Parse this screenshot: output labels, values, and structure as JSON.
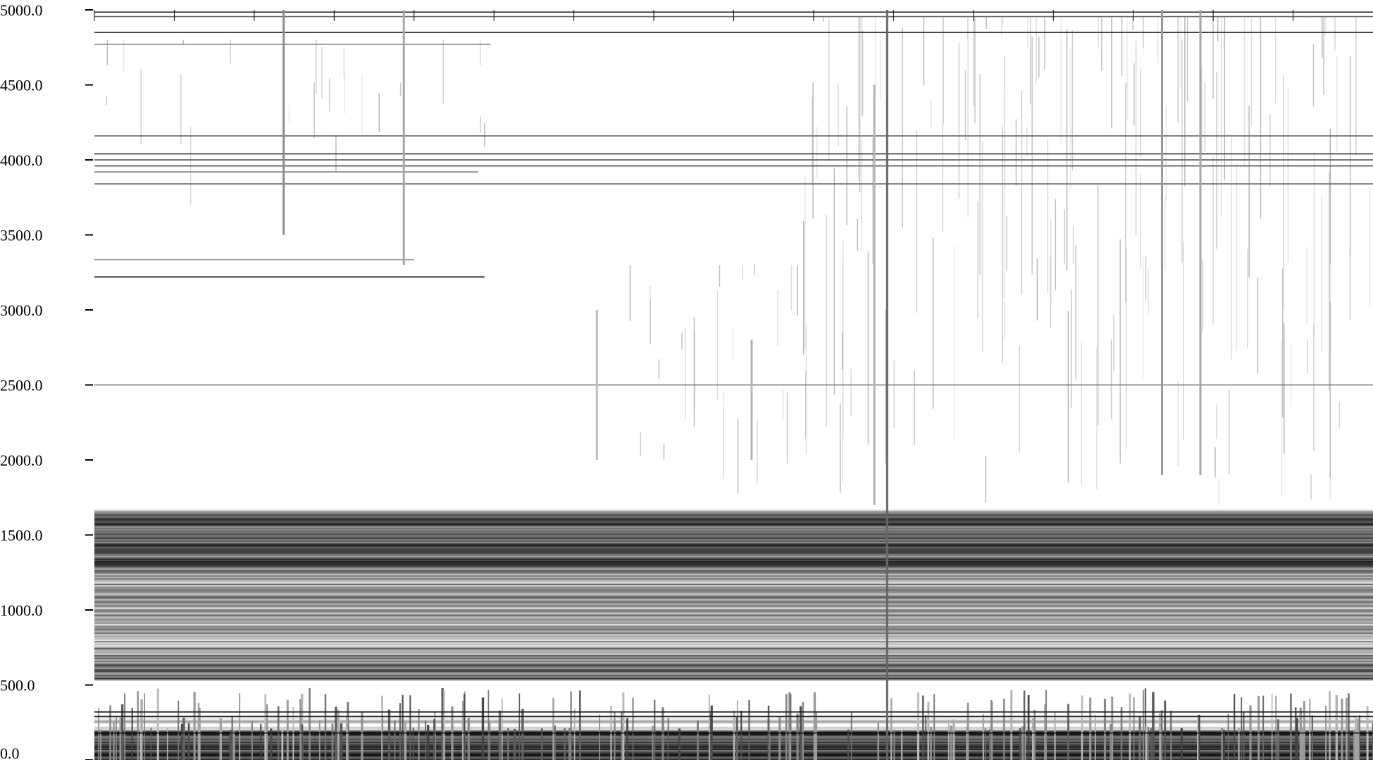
{
  "chart_data": {
    "type": "heatmap",
    "title": "",
    "xlabel": "",
    "ylabel": "",
    "ylim": [
      0,
      5000
    ],
    "y_ticks": [
      "0.0",
      "500.0",
      "1000.0",
      "1500.0",
      "2000.0",
      "2500.0",
      "3000.0",
      "3500.0",
      "4000.0",
      "4500.0",
      "5000.0"
    ],
    "y_tick_values": [
      0,
      500,
      1000,
      1500,
      2000,
      2500,
      3000,
      3500,
      4000,
      4500,
      5000
    ],
    "x_tick_count": 16,
    "x_tick_labels": [],
    "colormap": [
      "#ffffff",
      "#000000"
    ],
    "bands": [
      {
        "y0": 0,
        "y1": 200,
        "intensity": 0.72
      },
      {
        "y0": 200,
        "y1": 330,
        "intensity": 0.12
      },
      {
        "y0": 530,
        "y1": 700,
        "intensity": 0.52
      },
      {
        "y0": 700,
        "y1": 1250,
        "intensity": 0.38
      },
      {
        "y0": 1250,
        "y1": 1650,
        "intensity": 0.66
      },
      {
        "y0": 1650,
        "y1": 1680,
        "intensity": 0.22
      }
    ],
    "horizontal_lines": [
      {
        "y": 4985,
        "x0": 0.0,
        "x1": 1.0,
        "intensity": 0.8
      },
      {
        "y": 4955,
        "x0": 0.0,
        "x1": 1.0,
        "intensity": 0.6
      },
      {
        "y": 4850,
        "x0": 0.0,
        "x1": 1.0,
        "intensity": 0.9
      },
      {
        "y": 4770,
        "x0": 0.0,
        "x1": 0.31,
        "intensity": 0.5
      },
      {
        "y": 4160,
        "x0": 0.0,
        "x1": 1.0,
        "intensity": 0.6
      },
      {
        "y": 4040,
        "x0": 0.0,
        "x1": 1.0,
        "intensity": 0.8
      },
      {
        "y": 4000,
        "x0": 0.0,
        "x1": 1.0,
        "intensity": 0.7
      },
      {
        "y": 3960,
        "x0": 0.0,
        "x1": 1.0,
        "intensity": 0.7
      },
      {
        "y": 3920,
        "x0": 0.0,
        "x1": 0.3,
        "intensity": 0.5
      },
      {
        "y": 3840,
        "x0": 0.0,
        "x1": 1.0,
        "intensity": 0.6
      },
      {
        "y": 3335,
        "x0": 0.0,
        "x1": 0.25,
        "intensity": 0.4
      },
      {
        "y": 3220,
        "x0": 0.0,
        "x1": 0.305,
        "intensity": 0.9
      },
      {
        "y": 2500,
        "x0": 0.0,
        "x1": 1.0,
        "intensity": 0.55
      },
      {
        "y": 320,
        "x0": 0.0,
        "x1": 1.0,
        "intensity": 0.9
      },
      {
        "y": 290,
        "x0": 0.0,
        "x1": 1.0,
        "intensity": 0.9
      },
      {
        "y": 180,
        "x0": 0.0,
        "x1": 1.0,
        "intensity": 0.9
      }
    ],
    "vertical_lines": [
      {
        "x": 0.148,
        "y0": 3500,
        "y1": 5000,
        "intensity": 0.45
      },
      {
        "x": 0.242,
        "y0": 3300,
        "y1": 5000,
        "intensity": 0.35
      },
      {
        "x": 0.62,
        "y0": 0,
        "y1": 5000,
        "intensity": 0.6
      },
      {
        "x": 0.835,
        "y0": 1900,
        "y1": 5000,
        "intensity": 0.4
      },
      {
        "x": 0.865,
        "y0": 1900,
        "y1": 5000,
        "intensity": 0.35
      },
      {
        "x": 0.393,
        "y0": 2000,
        "y1": 3000,
        "intensity": 0.25
      },
      {
        "x": 0.514,
        "y0": 2000,
        "y1": 2800,
        "intensity": 0.3
      },
      {
        "x": 0.61,
        "y0": 1700,
        "y1": 4500,
        "intensity": 0.3
      }
    ],
    "sparse_regions": [
      {
        "x0": 0.55,
        "x1": 1.0,
        "y0": 1700,
        "y1": 4950,
        "density": 0.42
      },
      {
        "x0": 0.4,
        "x1": 0.55,
        "y0": 1750,
        "y1": 3300,
        "density": 0.18
      },
      {
        "x0": 0.0,
        "x1": 0.33,
        "y0": 3700,
        "y1": 4800,
        "density": 0.08
      }
    ]
  }
}
